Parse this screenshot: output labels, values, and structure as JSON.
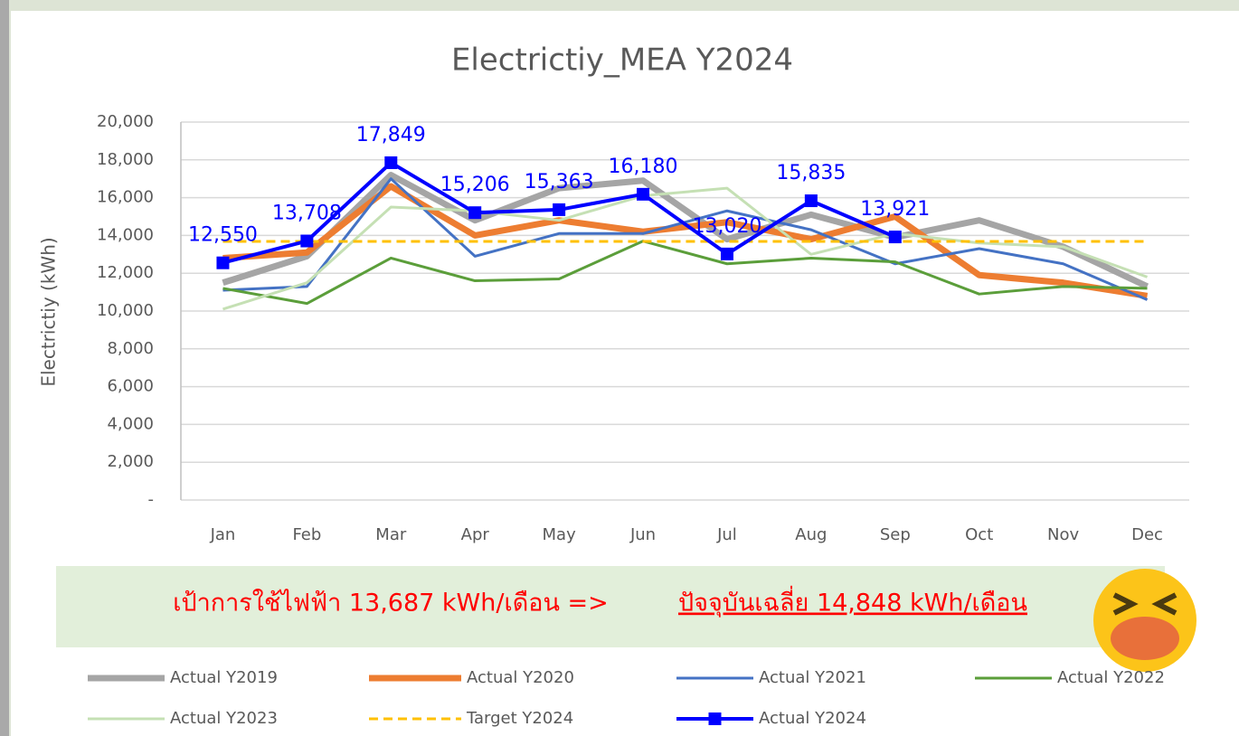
{
  "chart_data": {
    "type": "line",
    "title": "Electrictiy_MEA Y2024",
    "ylabel": "Electrictiy (kWh)",
    "categories": [
      "Jan",
      "Feb",
      "Mar",
      "Apr",
      "May",
      "Jun",
      "Jul",
      "Aug",
      "Sep",
      "Oct",
      "Nov",
      "Dec"
    ],
    "ylim": [
      0,
      20000
    ],
    "yticks": [
      {
        "value": 0,
        "label": "-"
      },
      {
        "value": 2000,
        "label": "2,000"
      },
      {
        "value": 4000,
        "label": "4,000"
      },
      {
        "value": 6000,
        "label": "6,000"
      },
      {
        "value": 8000,
        "label": "8,000"
      },
      {
        "value": 10000,
        "label": "10,000"
      },
      {
        "value": 12000,
        "label": "12,000"
      },
      {
        "value": 14000,
        "label": "14,000"
      },
      {
        "value": 16000,
        "label": "16,000"
      },
      {
        "value": 18000,
        "label": "18,000"
      },
      {
        "value": 20000,
        "label": "20,000"
      }
    ],
    "grid": true,
    "legend": "bottom",
    "series": [
      {
        "name": "Actual Y2019",
        "color": "#a5a5a5",
        "values": [
          11500,
          12900,
          17200,
          14800,
          16500,
          16900,
          13800,
          15100,
          13900,
          14800,
          13400,
          11300
        ]
      },
      {
        "name": "Actual Y2020",
        "color": "#ed7d31",
        "values": [
          12800,
          13100,
          16600,
          14000,
          14800,
          14200,
          14700,
          13800,
          15000,
          11900,
          11500,
          10800
        ]
      },
      {
        "name": "Actual Y2021",
        "color": "#4472c4",
        "values": [
          11100,
          11300,
          17000,
          12900,
          14100,
          14100,
          15300,
          14300,
          12500,
          13300,
          12500,
          10600
        ]
      },
      {
        "name": "Actual Y2022",
        "color": "#5b9e3a",
        "values": [
          11200,
          10400,
          12800,
          11600,
          11700,
          13700,
          12500,
          12800,
          12600,
          10900,
          11300,
          11200
        ]
      },
      {
        "name": "Actual Y2023",
        "color": "#c5e0b4",
        "values": [
          10100,
          11500,
          15500,
          15300,
          14800,
          16100,
          16500,
          13000,
          14100,
          13600,
          13400,
          11800
        ]
      },
      {
        "name": "Target Y2024",
        "color": "#ffc000",
        "linestyle": "dashed",
        "values": [
          13687,
          13687,
          13687,
          13687,
          13687,
          13687,
          13687,
          13687,
          13687,
          13687,
          13687,
          13687
        ]
      },
      {
        "name": "Actual Y2024",
        "color": "#0000ff",
        "marker": "square",
        "values": [
          12550,
          13708,
          17849,
          15206,
          15363,
          16180,
          13020,
          15835,
          13921,
          null,
          null,
          null
        ],
        "value_labels": [
          "12,550",
          "13,708",
          "17,849",
          "15,206",
          "15,363",
          "16,180",
          "13,020",
          "15,835",
          "13,921",
          null,
          null,
          null
        ]
      }
    ],
    "annotation": {
      "target": "เป้าการใช้ไฟฟ้า 13,687 kWh/เดือน  =>",
      "current": "ปัจจุบันเฉลี่ย 14,848 kWh/เดือน"
    }
  }
}
